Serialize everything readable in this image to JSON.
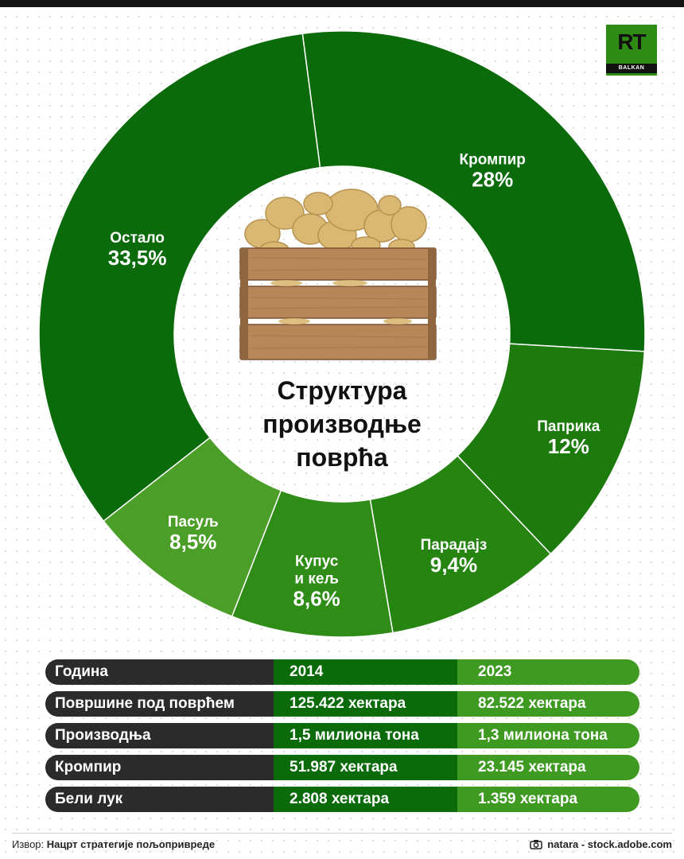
{
  "chart_data": {
    "type": "pie",
    "title": "Структура производње поврћа",
    "slices": [
      {
        "label": "Кромпир",
        "value": 28,
        "value_label": "28%",
        "color": "#0b6b0b"
      },
      {
        "label": "Паприка",
        "value": 12,
        "value_label": "12%",
        "color": "#1d7a0d"
      },
      {
        "label": "Парадајз",
        "value": 9.4,
        "value_label": "9,4%",
        "color": "#268411"
      },
      {
        "label": "Купус и кељ",
        "value": 8.6,
        "value_label": "8,6%",
        "color": "#2f8c16"
      },
      {
        "label": "Пасуљ",
        "value": 8.5,
        "value_label": "8,5%",
        "color": "#4b9e27"
      },
      {
        "label": "Остало",
        "value": 33.5,
        "value_label": "33,5%",
        "color": "#0b6b0b"
      }
    ]
  },
  "center_title_lines": [
    "Структура",
    "производње",
    "поврћа"
  ],
  "logo": {
    "text": "RT",
    "sub": "BALKAN"
  },
  "table": {
    "rows": [
      [
        "Година",
        "2014",
        "2023"
      ],
      [
        "Површине под поврћем",
        "125.422 хектара",
        "82.522 хектара"
      ],
      [
        "Производња",
        "1,5 милиона тона",
        "1,3 милиона тона"
      ],
      [
        "Кромпир",
        "51.987 хектара",
        "23.145 хектара"
      ],
      [
        "Бели лук",
        "2.808 хектара",
        "1.359 хектара"
      ]
    ]
  },
  "footer": {
    "source_label": "Извор:",
    "source_value": "Нацрт стратегије пољопривреде",
    "credit": "natara - stock.adobe.com"
  }
}
